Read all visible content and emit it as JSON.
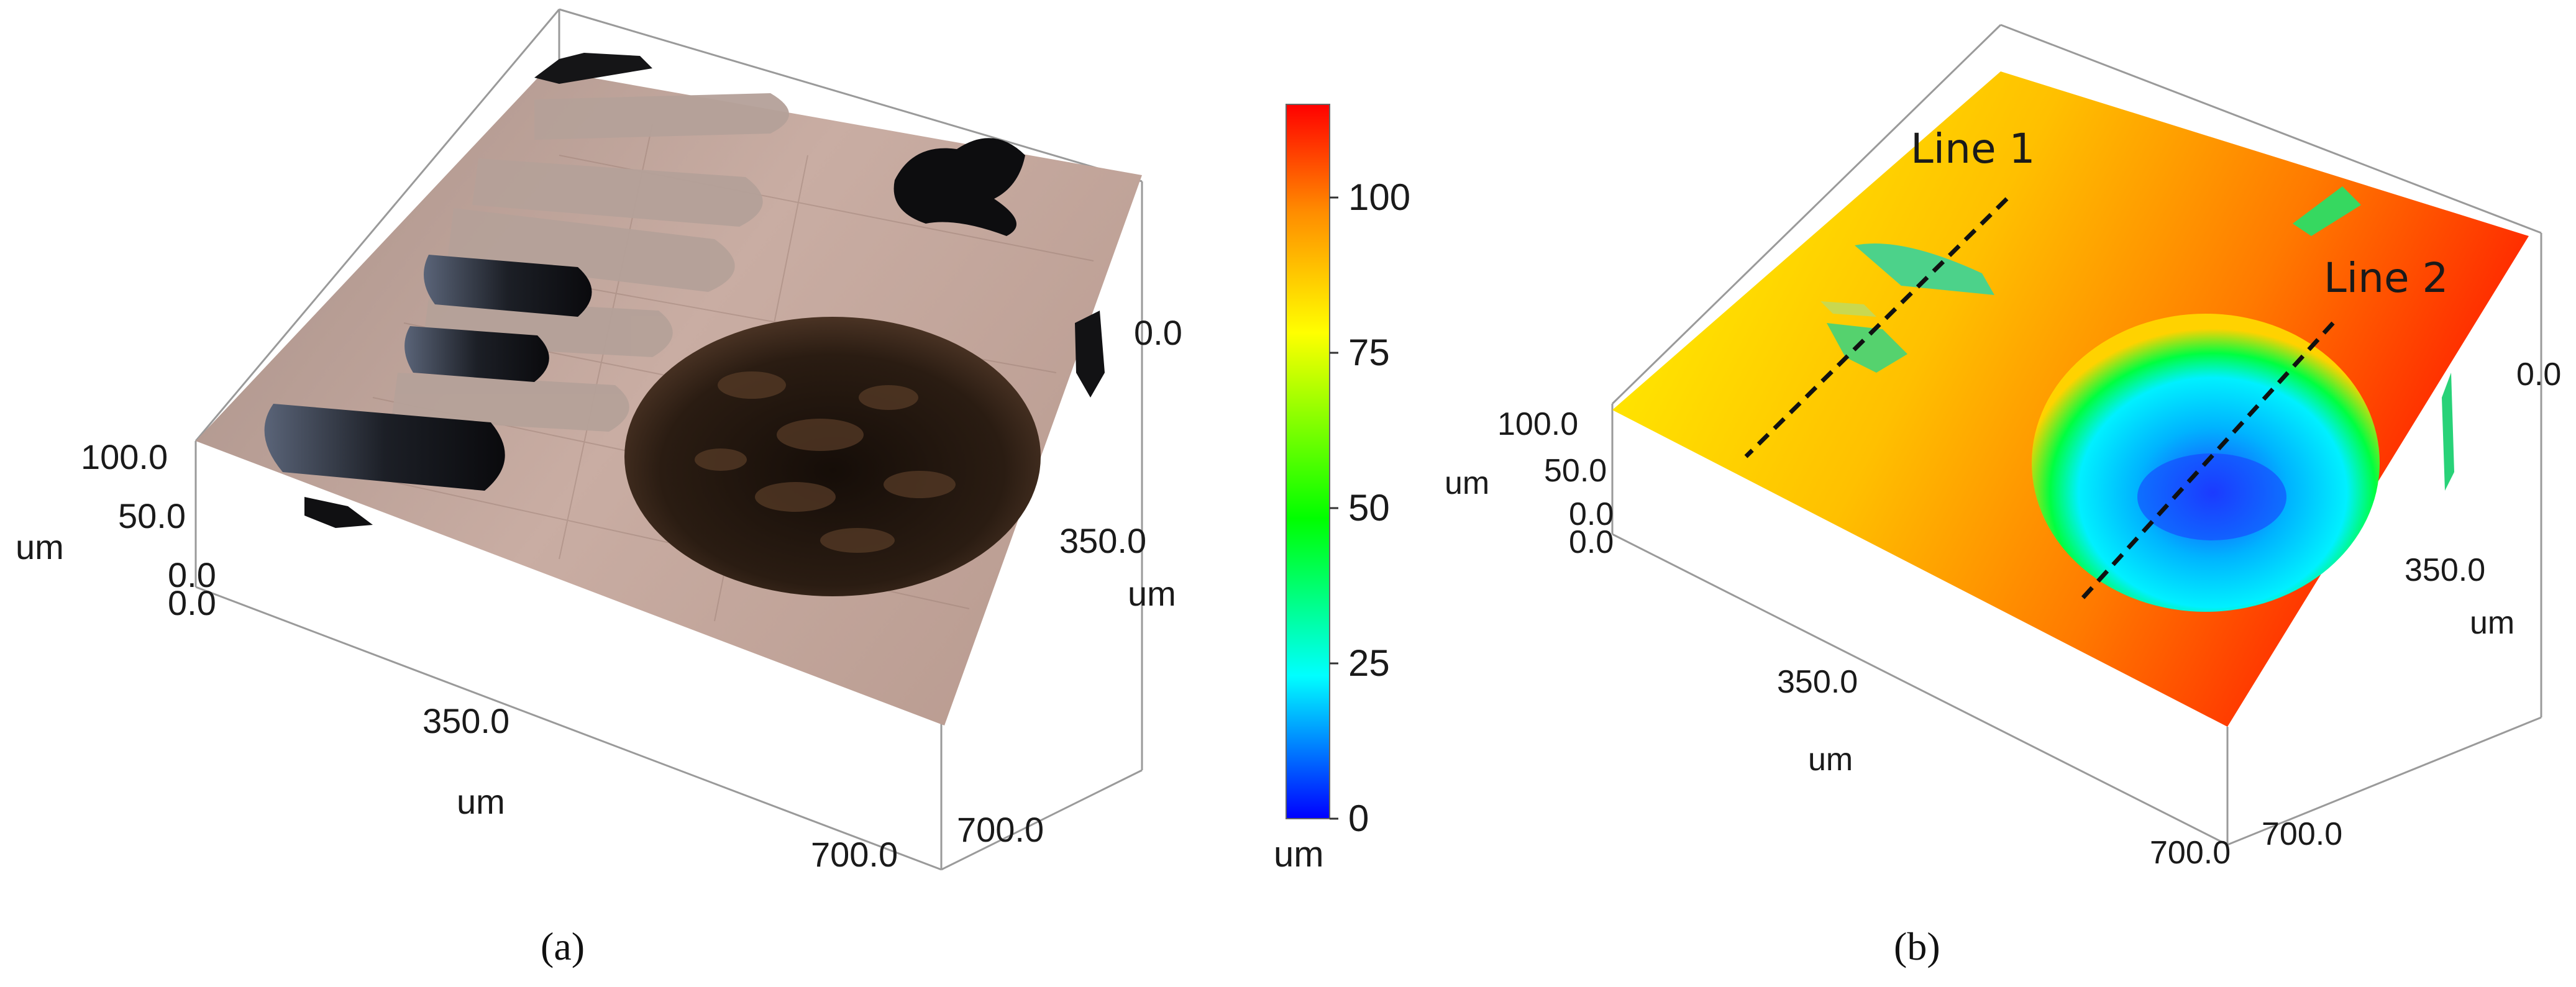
{
  "panel_a": {
    "caption": "(a)",
    "z_ticks": [
      "100.0",
      "50.0",
      "0.0"
    ],
    "y_origin_tick": "0.0",
    "z_unit": "um",
    "x_ticks": [
      "350.0",
      "700.0"
    ],
    "x_unit": "um",
    "y_ticks": [
      "0.0",
      "350.0",
      "700.0"
    ],
    "y_unit": "um"
  },
  "colorbar": {
    "ticks": [
      "100",
      "75",
      "50",
      "25",
      "0"
    ],
    "tick_values": [
      100,
      75,
      50,
      25,
      0
    ],
    "min": 0,
    "max": 115,
    "unit": "um",
    "colors": [
      "#0000ff",
      "#00ffff",
      "#00ff00",
      "#ffff00",
      "#ff8c00",
      "#ff0000"
    ]
  },
  "panel_b": {
    "caption": "(b)",
    "z_ticks": [
      "100.0",
      "50.0",
      "0.0"
    ],
    "y_origin_tick": "0.0",
    "z_unit": "um",
    "x_ticks": [
      "350.0",
      "700.0"
    ],
    "x_unit": "um",
    "y_ticks": [
      "0.0",
      "350.0",
      "700.0"
    ],
    "y_unit": "um",
    "line_labels": [
      "Line 1",
      "Line 2"
    ]
  }
}
